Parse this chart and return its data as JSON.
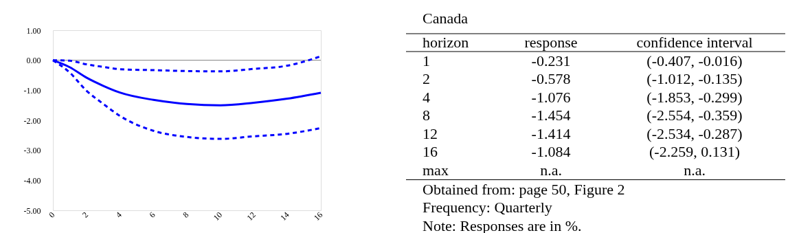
{
  "chart_data": [
    {
      "type": "line",
      "x": [
        0,
        1,
        2,
        3,
        4,
        6,
        8,
        10,
        12,
        14,
        16
      ],
      "series": [
        {
          "color": "#0000ff",
          "line_style": "solid",
          "values": [
            0,
            -0.231,
            -0.578,
            -0.85,
            -1.076,
            -1.32,
            -1.454,
            -1.5,
            -1.414,
            -1.28,
            -1.084
          ]
        },
        {
          "color": "#0000ff",
          "line_style": "dashed",
          "values": [
            0,
            -0.407,
            -1.012,
            -1.45,
            -1.853,
            -2.35,
            -2.554,
            -2.62,
            -2.534,
            -2.45,
            -2.259
          ]
        },
        {
          "color": "#0000ff",
          "line_style": "dashed",
          "values": [
            0,
            -0.016,
            -0.135,
            -0.22,
            -0.299,
            -0.33,
            -0.359,
            -0.37,
            -0.287,
            -0.18,
            0.131
          ]
        }
      ],
      "xlim": [
        0,
        16
      ],
      "xticks": [
        0,
        2,
        4,
        6,
        8,
        10,
        12,
        14,
        16
      ],
      "ylim": [
        -5,
        1
      ],
      "yticks": [
        {
          "value": -5,
          "label": "-5.00"
        },
        {
          "value": -4,
          "label": "-4.00"
        },
        {
          "value": -3,
          "label": "-3.00"
        },
        {
          "value": -2,
          "label": "-2.00"
        },
        {
          "value": -1,
          "label": "-1.00"
        },
        {
          "value": 0,
          "label": "0.00"
        },
        {
          "value": 1,
          "label": "1.00"
        }
      ],
      "ref_lines": [
        {
          "axis": "y",
          "value": 0,
          "color": "#808080"
        }
      ],
      "grid": false
    },
    {
      "type": "other",
      "title": "Canada",
      "annotations": [
        "horizon",
        "response",
        "confidence interval",
        "1",
        "-0.231",
        "(-0.407, -0.016)",
        "2",
        "-0.578",
        "(-1.012, -0.135)",
        "4",
        "-1.076",
        "(-1.853, -0.299)",
        "8",
        "-1.454",
        "(-2.554, -0.359)",
        "12",
        "-1.414",
        "(-2.534, -0.287)",
        "16",
        "-1.084",
        "(-2.259, 0.131)",
        "max",
        "n.a.",
        "n.a.",
        "Obtained from: page 50, Figure 2",
        "Frequency: Quarterly",
        "Note: Responses are in %."
      ]
    }
  ]
}
